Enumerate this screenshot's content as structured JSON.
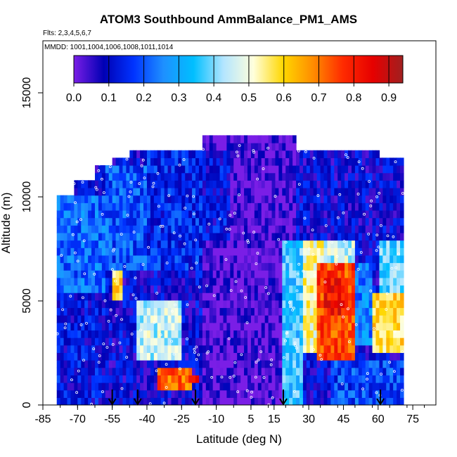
{
  "chart_data": {
    "type": "heatmap",
    "title": "ATOM3 Southbound AmmBalance_PM1_AMS",
    "flights_note": "Flts: 2,3,4,5,6,7",
    "mmdd_note": "MMDD: 1001,1004,1006,1008,1011,1014",
    "xlabel": "Latitude (deg N)",
    "ylabel": "Altitude (m)",
    "xlim": [
      -85,
      85
    ],
    "ylim": [
      0,
      17500
    ],
    "x_ticks": [
      -85,
      -70,
      -55,
      -40,
      -25,
      -10,
      5,
      15,
      30,
      45,
      60,
      75
    ],
    "y_ticks": [
      0,
      5000,
      10000,
      15000
    ],
    "colorbar": {
      "min": 0,
      "max": 0.94,
      "ticks": [
        0.0,
        0.1,
        0.2,
        0.3,
        0.4,
        0.5,
        0.6,
        0.7,
        0.8,
        0.9
      ],
      "tick_labels": [
        "0.0",
        "0.1",
        "0.2",
        "0.3",
        "0.4",
        "0.5",
        "0.6",
        "0.7",
        "0.8",
        "0.9"
      ],
      "stops": [
        "#7a1ee6",
        "#0000b4",
        "#0033ff",
        "#1e90ff",
        "#00bfff",
        "#b3e5ff",
        "#ffffdc",
        "#ffd700",
        "#ff8c00",
        "#ff2a00",
        "#e60000",
        "#a02020"
      ],
      "placement": "top"
    },
    "column_extents": [
      {
        "lat": [
          -79,
          -72
        ],
        "alt_top": 10000
      },
      {
        "lat": [
          -72,
          -62
        ],
        "alt_top": 10800
      },
      {
        "lat": [
          -62,
          -55
        ],
        "alt_top": 11600
      },
      {
        "lat": [
          -55,
          -47
        ],
        "alt_top": 12000
      },
      {
        "lat": [
          -47,
          -16
        ],
        "alt_top": 12400
      },
      {
        "lat": [
          -16,
          25
        ],
        "alt_top": 12900
      },
      {
        "lat": [
          25,
          60
        ],
        "alt_top": 12400
      },
      {
        "lat": [
          60,
          71
        ],
        "alt_top": 11800
      }
    ],
    "regions": [
      {
        "lat": [
          -79,
          -58
        ],
        "alt": [
          5500,
          10000
        ],
        "value": 0.22
      },
      {
        "lat": [
          -79,
          -58
        ],
        "alt": [
          0,
          5500
        ],
        "value": 0.12
      },
      {
        "lat": [
          -58,
          -40
        ],
        "alt": [
          6500,
          11600
        ],
        "value": 0.2
      },
      {
        "lat": [
          -40,
          -16
        ],
        "alt": [
          6500,
          12400
        ],
        "value": 0.15
      },
      {
        "lat": [
          -45,
          -25
        ],
        "alt": [
          2000,
          5000
        ],
        "value": 0.45
      },
      {
        "lat": [
          -35,
          -20
        ],
        "alt": [
          800,
          1800
        ],
        "value": 0.72
      },
      {
        "lat": [
          -22,
          -18
        ],
        "alt": [
          1200,
          1600
        ],
        "value": 0.85
      },
      {
        "lat": [
          -16,
          25
        ],
        "alt": [
          0,
          12900
        ],
        "value": 0.02
      },
      {
        "lat": [
          -16,
          -4
        ],
        "alt": [
          8000,
          12400
        ],
        "value": 0.12
      },
      {
        "lat": [
          18,
          28
        ],
        "alt": [
          0,
          8000
        ],
        "value": 0.35
      },
      {
        "lat": [
          25,
          35
        ],
        "alt": [
          8000,
          12400
        ],
        "value": 0.1
      },
      {
        "lat": [
          28,
          36
        ],
        "alt": [
          2500,
          8000
        ],
        "value": 0.52
      },
      {
        "lat": [
          34,
          50
        ],
        "alt": [
          2000,
          7000
        ],
        "value": 0.75
      },
      {
        "lat": [
          36,
          46
        ],
        "alt": [
          4500,
          6000
        ],
        "value": 0.82
      },
      {
        "lat": [
          36,
          50
        ],
        "alt": [
          7000,
          8000
        ],
        "value": 0.45
      },
      {
        "lat": [
          50,
          58
        ],
        "alt": [
          3000,
          7000
        ],
        "value": 0.25
      },
      {
        "lat": [
          58,
          71
        ],
        "alt": [
          2500,
          5500
        ],
        "value": 0.58
      },
      {
        "lat": [
          60,
          71
        ],
        "alt": [
          5500,
          8000
        ],
        "value": 0.38
      },
      {
        "lat": [
          40,
          71
        ],
        "alt": [
          0,
          2000
        ],
        "value": 0.18
      },
      {
        "lat": [
          -55,
          -50
        ],
        "alt": [
          5000,
          6500
        ],
        "value": 0.6
      }
    ],
    "markers": [
      {
        "label": "down-arrow",
        "lat": -55
      },
      {
        "label": "down-arrow",
        "lat": -44
      },
      {
        "label": "down-arrow",
        "lat": -19
      },
      {
        "label": "down-arrow",
        "lat": 19
      },
      {
        "label": "down-arrow",
        "lat": 61
      }
    ],
    "grid": false
  }
}
